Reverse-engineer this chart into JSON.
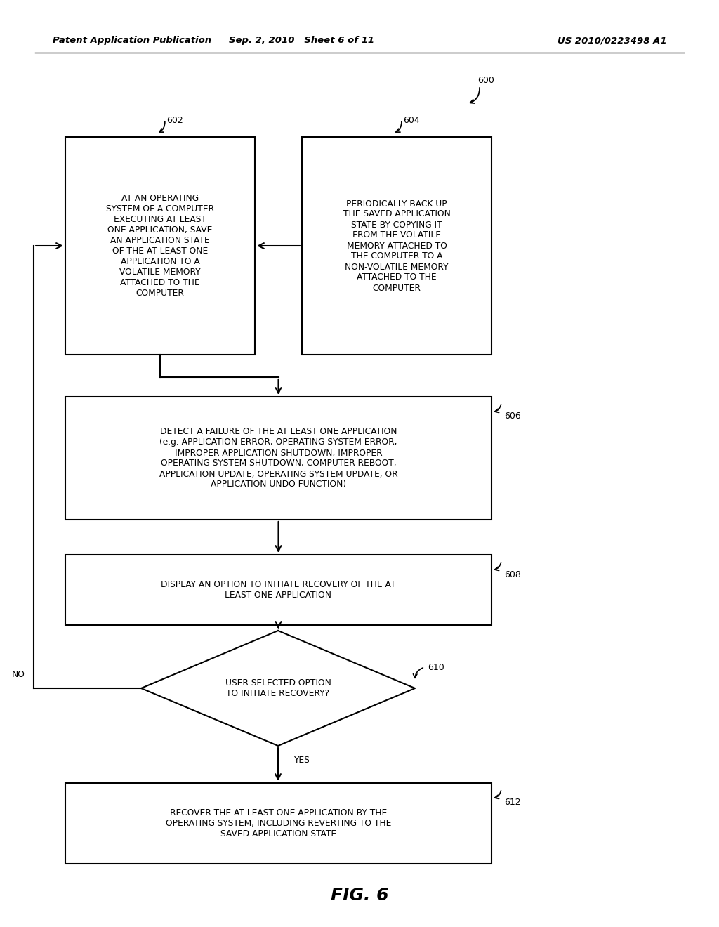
{
  "header_left": "Patent Application Publication",
  "header_mid": "Sep. 2, 2010   Sheet 6 of 11",
  "header_right": "US 2010/0223498 A1",
  "fig_label": "FIG. 6",
  "bg_color": "#ffffff",
  "flow_number": "600",
  "box602_text": "AT AN OPERATING\nSYSTEM OF A COMPUTER\nEXECUTING AT LEAST\nONE APPLICATION, SAVE\nAN APPLICATION STATE\nOF THE AT LEAST ONE\nAPPLICATION TO A\nVOLATILE MEMORY\nATTACHED TO THE\nCOMPUTER",
  "box604_text": "PERIODICALLY BACK UP\nTHE SAVED APPLICATION\nSTATE BY COPYING IT\nFROM THE VOLATILE\nMEMORY ATTACHED TO\nTHE COMPUTER TO A\nNON-VOLATILE MEMORY\nATTACHED TO THE\nCOMPUTER",
  "box606_text": "DETECT A FAILURE OF THE AT LEAST ONE APPLICATION\n(e.g. APPLICATION ERROR, OPERATING SYSTEM ERROR,\nIMPROPER APPLICATION SHUTDOWN, IMPROPER\nOPERATING SYSTEM SHUTDOWN, COMPUTER REBOOT,\nAPPLICATION UPDATE, OPERATING SYSTEM UPDATE, OR\nAPPLICATION UNDO FUNCTION)",
  "box608_text": "DISPLAY AN OPTION TO INITIATE RECOVERY OF THE AT\nLEAST ONE APPLICATION",
  "box612_text": "RECOVER THE AT LEAST ONE APPLICATION BY THE\nOPERATING SYSTEM, INCLUDING REVERTING TO THE\nSAVED APPLICATION STATE",
  "diamond610_text": "USER SELECTED OPTION\nTO INITIATE RECOVERY?",
  "yes_label": "YES",
  "no_label": "NO"
}
